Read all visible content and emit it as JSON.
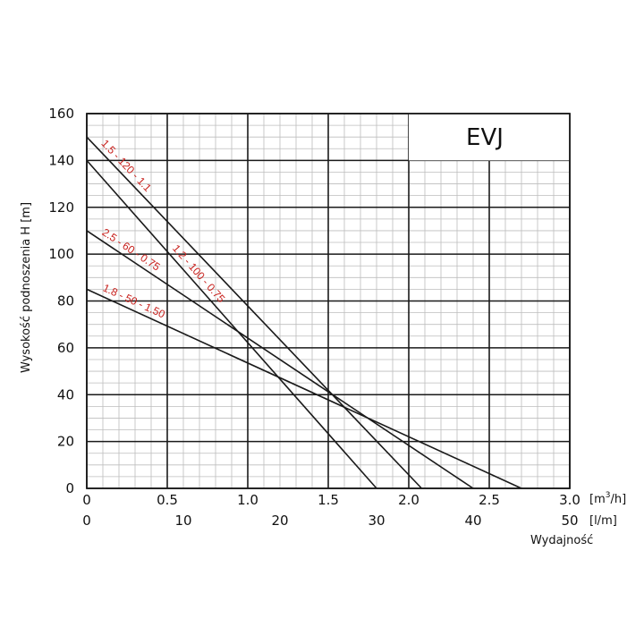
{
  "chart_data": {
    "type": "line",
    "title": "EVJ",
    "ylabel": "Wysokość podnoszenia H [m]",
    "xlabel": "Wydajność",
    "x_unit": "[m³/h]",
    "x2_unit": "[l/m]",
    "xlim": [
      0,
      3.0
    ],
    "x2lim": [
      0,
      50
    ],
    "ylim": [
      0,
      160
    ],
    "x_ticks": [
      "0",
      "0.5",
      "1.0",
      "1.5",
      "2.0",
      "2.5",
      "3.0"
    ],
    "x2_ticks": [
      "0",
      "10",
      "20",
      "30",
      "40",
      "50"
    ],
    "y_ticks": [
      "0",
      "20",
      "40",
      "60",
      "80",
      "100",
      "120",
      "140",
      "160"
    ],
    "grid": true,
    "series": [
      {
        "name": "1.5 - 120 - 1.1",
        "color": "#c8201c",
        "x": [
          0,
          2.08
        ],
        "y": [
          150,
          0
        ]
      },
      {
        "name": "1.2 - 100 - 0.75",
        "color": "#c8201c",
        "x": [
          0,
          1.8
        ],
        "y": [
          140,
          0
        ]
      },
      {
        "name": "2.5 - 60 - 0.75",
        "color": "#c8201c",
        "x": [
          0,
          2.4
        ],
        "y": [
          110,
          0
        ]
      },
      {
        "name": "1.8 - 50 - 1.50",
        "color": "#c8201c",
        "x": [
          0,
          2.7
        ],
        "y": [
          85,
          0
        ]
      }
    ]
  }
}
